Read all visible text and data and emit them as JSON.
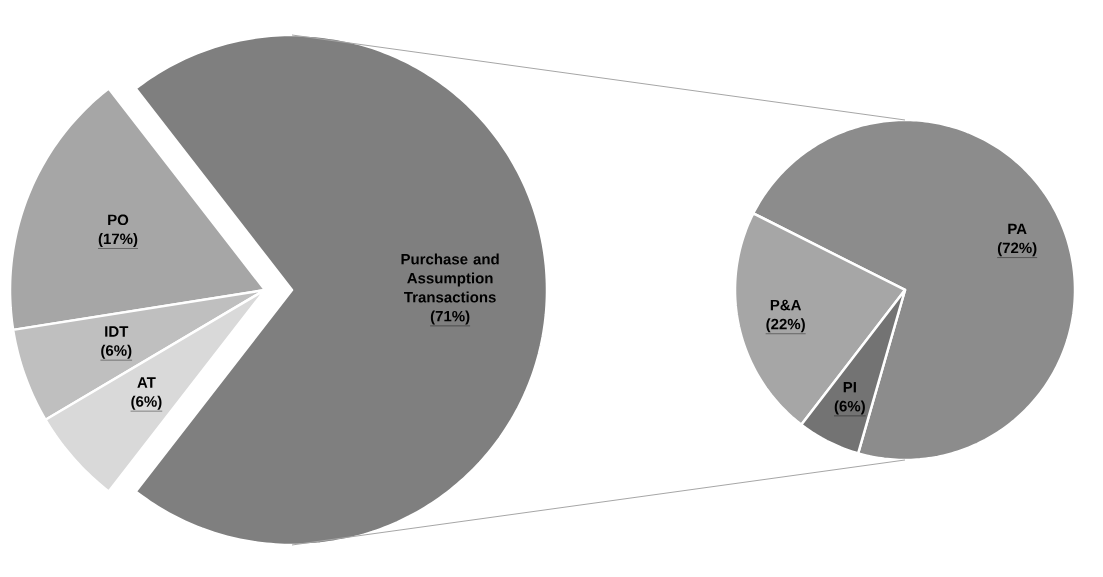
{
  "chart_data": [
    {
      "type": "pie",
      "categories": [
        "Purchase and Assumption Transactions",
        "PO",
        "IDT",
        "AT"
      ],
      "values": [
        71,
        17,
        6,
        6
      ],
      "colors": [
        "#7f7f7f",
        "#a6a6a6",
        "#bfbfbf",
        "#d9d9d9"
      ],
      "value_labels": [
        "(71%)",
        "(17%)",
        "(6%)",
        "(6%)"
      ]
    },
    {
      "type": "pie",
      "categories": [
        "PA",
        "P&A",
        "PI"
      ],
      "values": [
        72,
        22,
        6
      ],
      "colors": [
        "#8c8c8c",
        "#a6a6a6",
        "#737373"
      ],
      "value_labels": [
        "(72%)",
        "(22%)",
        "(6%)"
      ]
    }
  ]
}
